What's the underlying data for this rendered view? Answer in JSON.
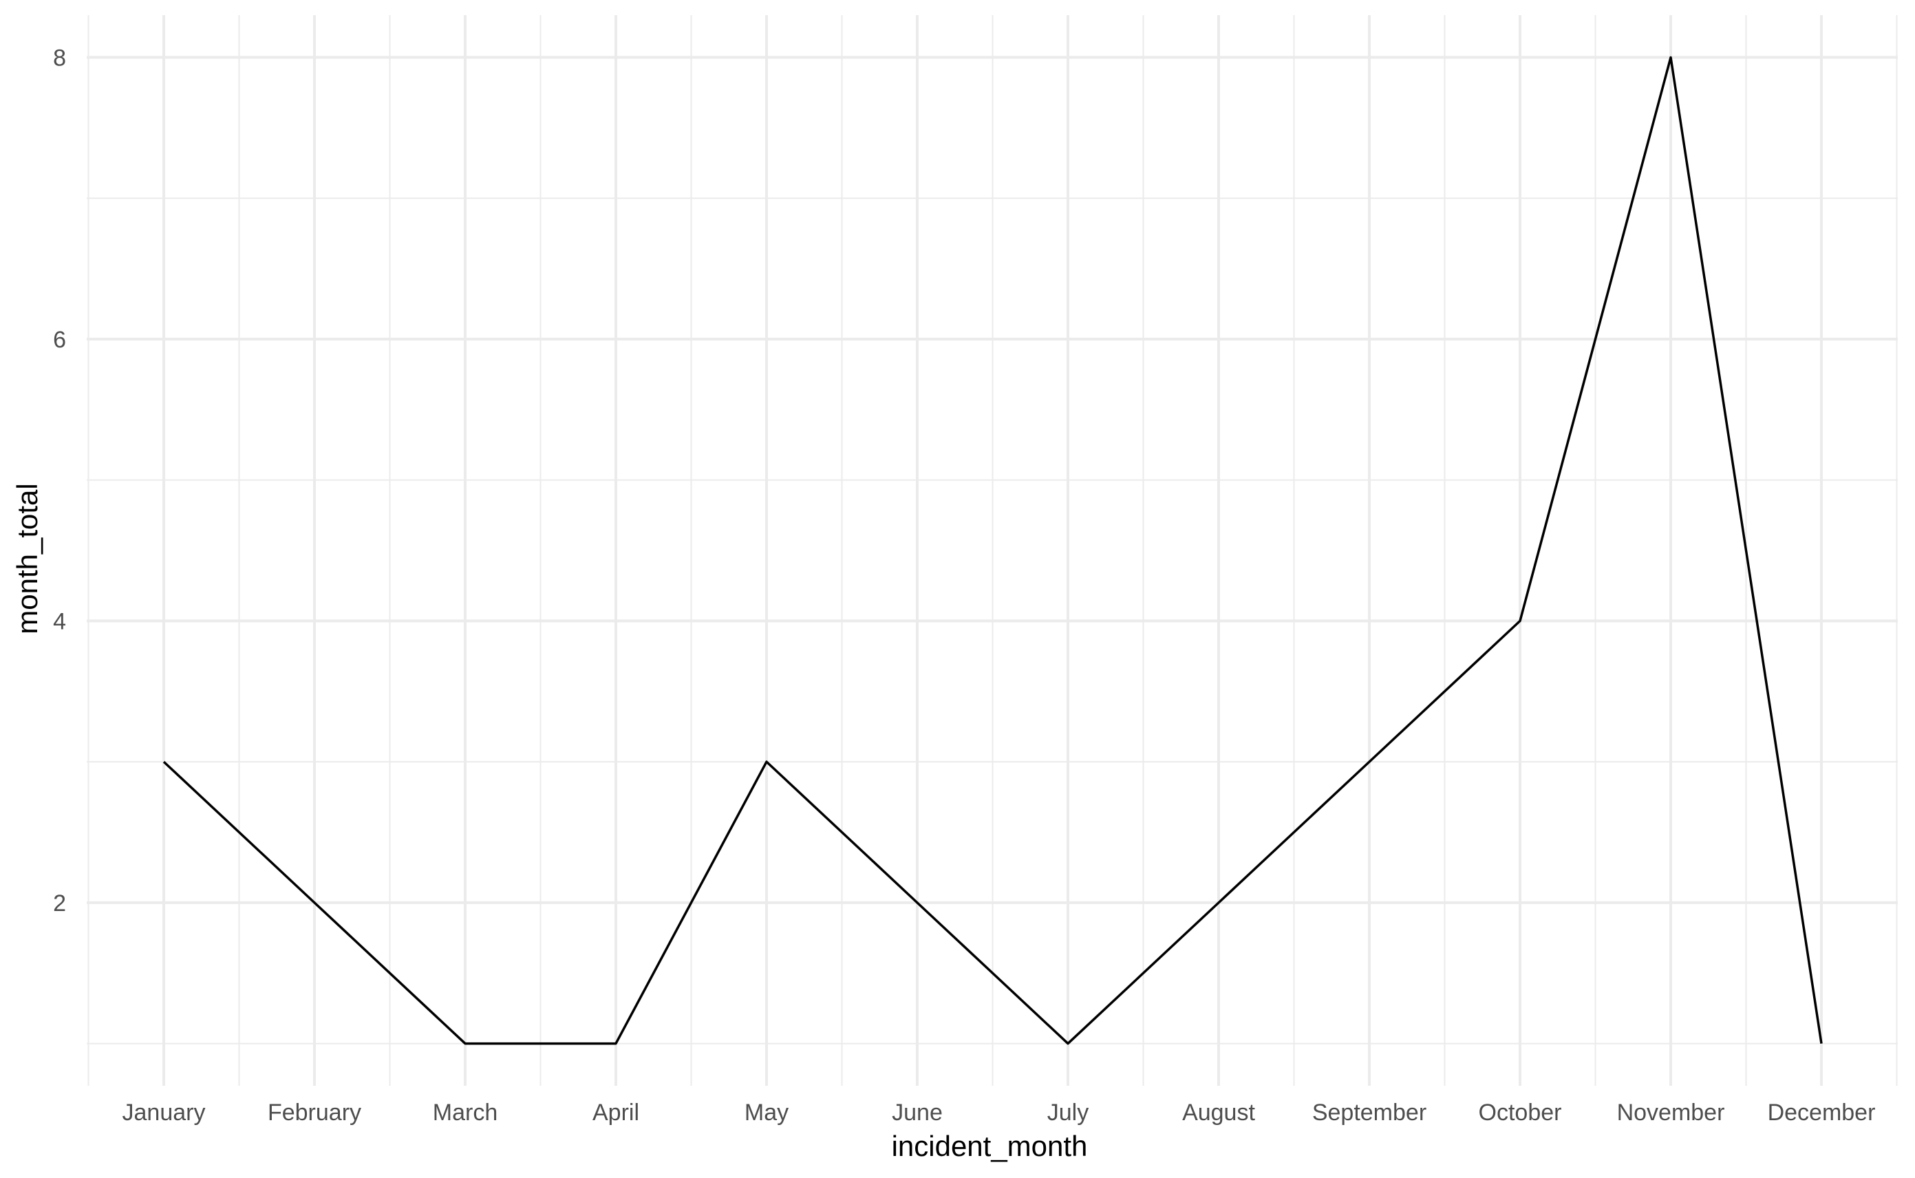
{
  "chart_data": {
    "type": "line",
    "categories": [
      "January",
      "February",
      "March",
      "April",
      "May",
      "June",
      "July",
      "August",
      "September",
      "October",
      "November",
      "December"
    ],
    "values": [
      3,
      2,
      1,
      1,
      3,
      2,
      1,
      2,
      3,
      4,
      8,
      1
    ],
    "xlabel": "incident_month",
    "ylabel": "month_total",
    "ylim": [
      0.7,
      8.3
    ],
    "yticks": [
      2,
      4,
      6,
      8
    ],
    "grid": true,
    "line_color": "#000000",
    "grid_color": "#ebebeb",
    "background": "#ffffff"
  }
}
